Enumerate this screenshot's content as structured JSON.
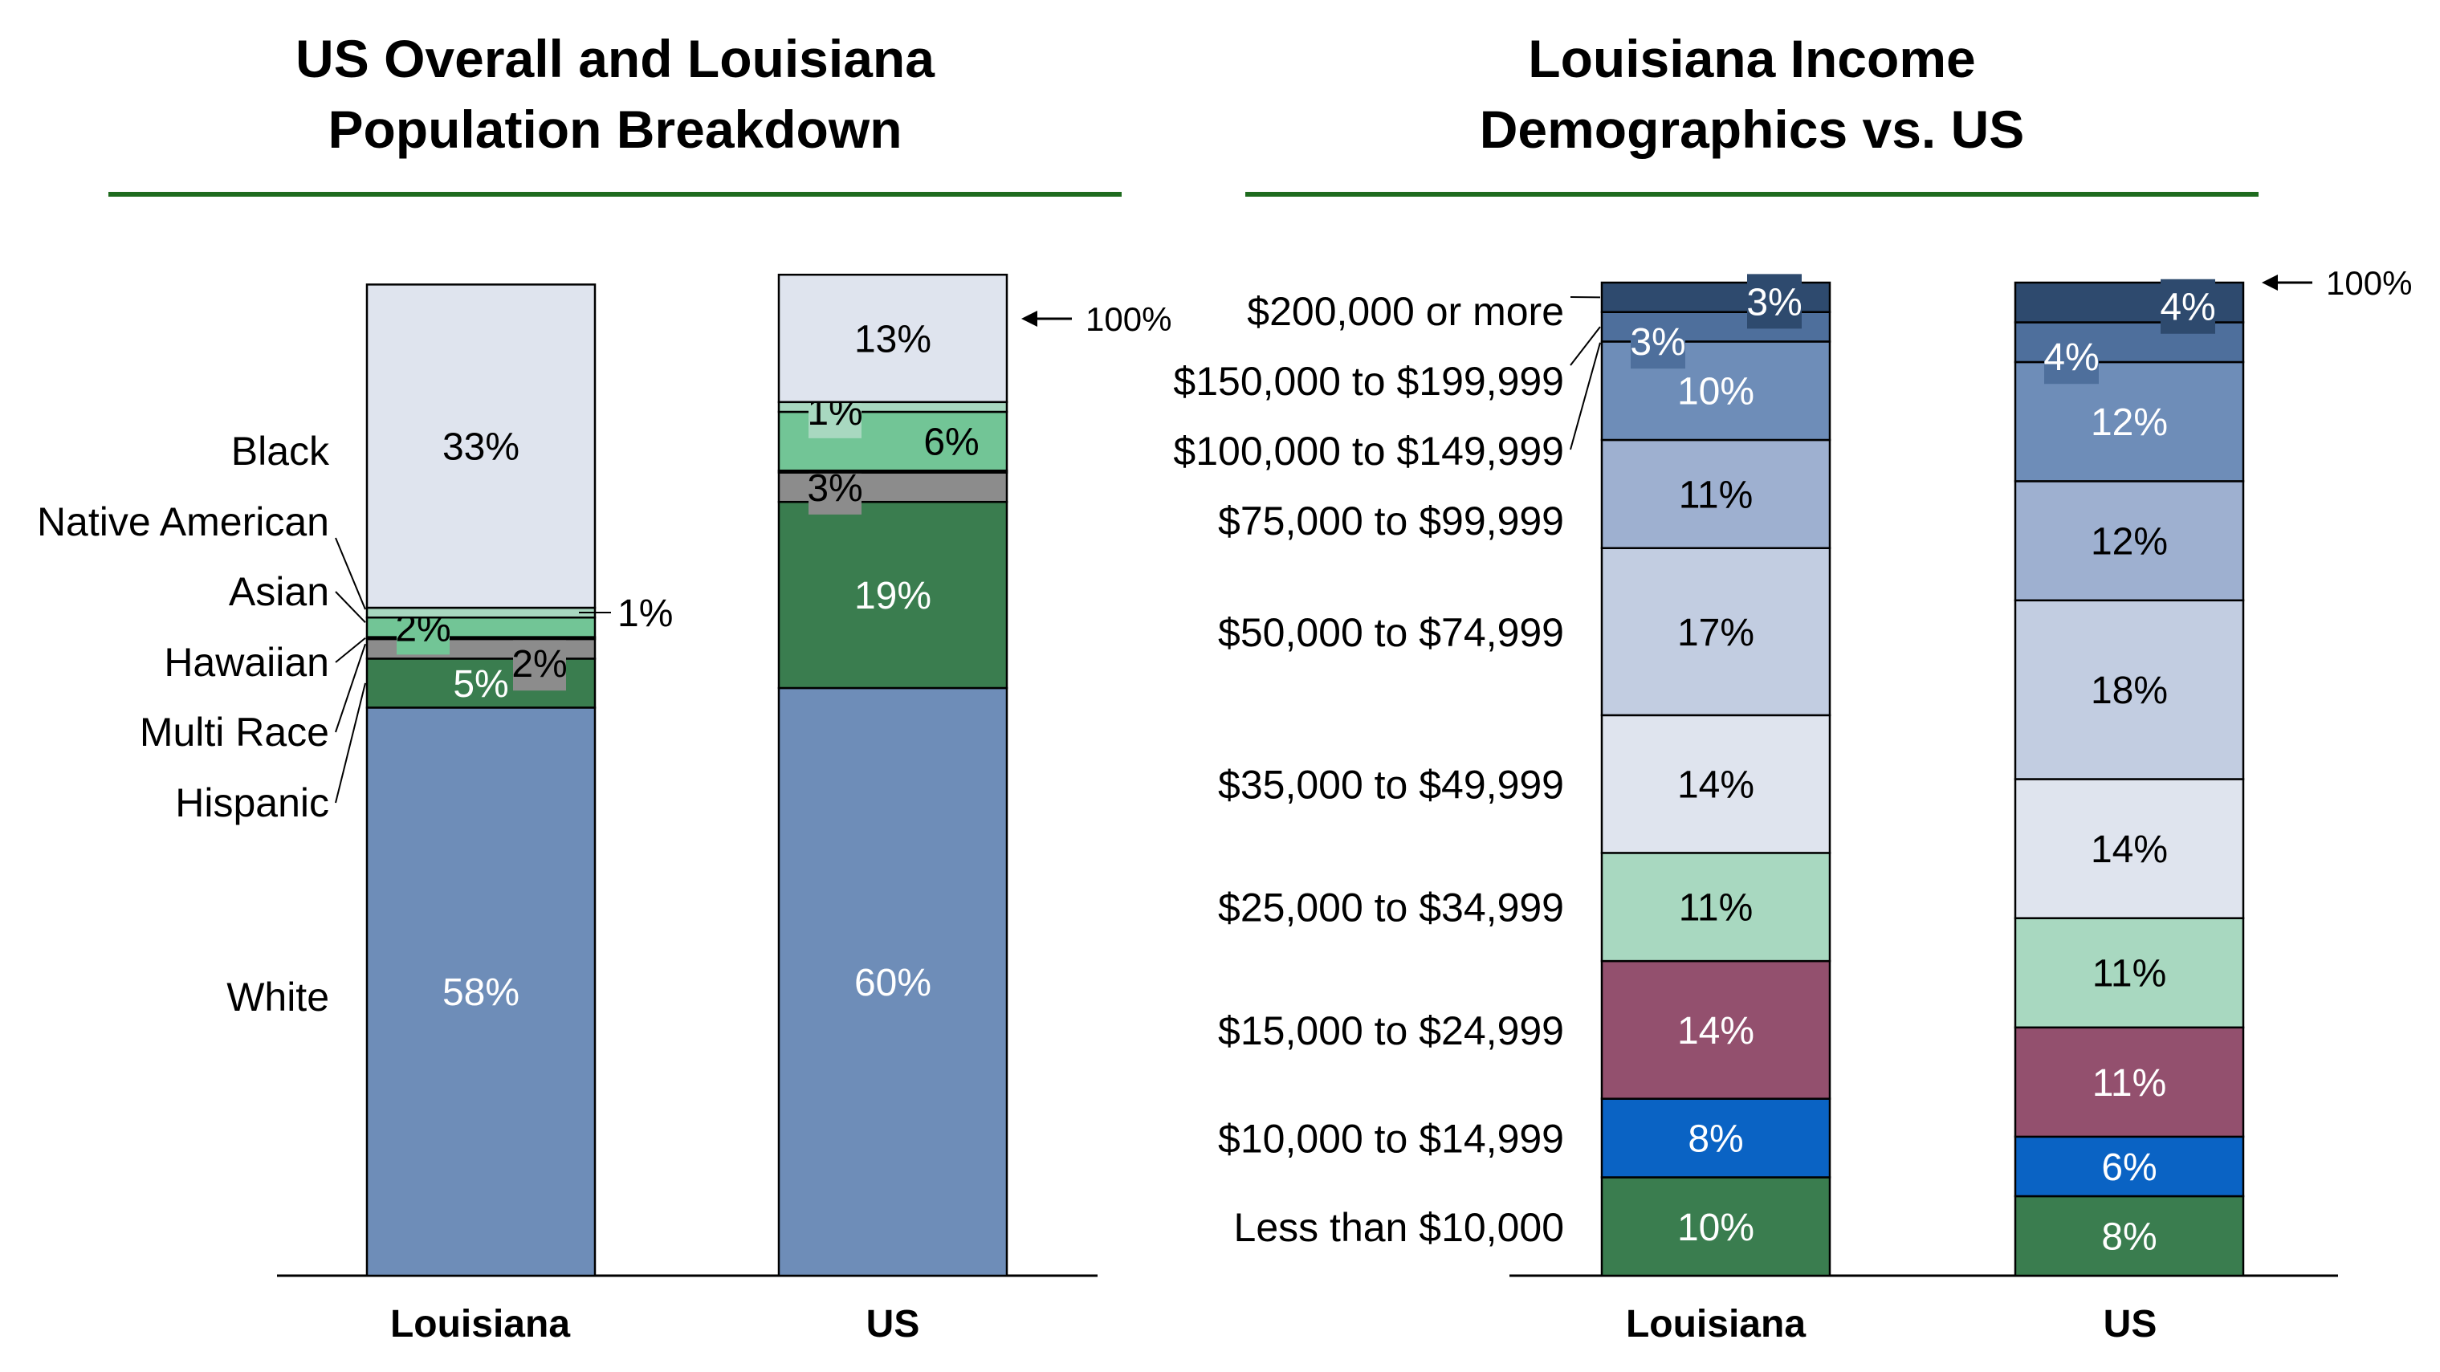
{
  "colors": {
    "accent_line": "#1e6b1e",
    "axis": "#000000"
  },
  "chart_data": [
    {
      "type": "bar",
      "stacked": true,
      "title": "US Overall and Louisiana\nPopulation Breakdown",
      "categories": [
        "Louisiana",
        "US"
      ],
      "ylim": [
        0,
        100
      ],
      "grid": false,
      "top_annotation": "100%",
      "series": [
        {
          "name": "White",
          "values": [
            58,
            60
          ],
          "labels": [
            "58%",
            "60%"
          ],
          "color": "#6e8db8",
          "label_color": "#ffffff"
        },
        {
          "name": "Hispanic",
          "values": [
            5,
            19
          ],
          "labels": [
            "5%",
            "19%"
          ],
          "color": "#3a7d4f",
          "label_color": "#ffffff"
        },
        {
          "name": "Multi Race",
          "values": [
            2,
            3
          ],
          "labels": [
            "2%",
            "3%"
          ],
          "color": "#8c8c8c",
          "label_color": "#000000"
        },
        {
          "name": "Hawaiian",
          "values": [
            0.2,
            0.2
          ],
          "labels": [
            "",
            ""
          ],
          "color": "#dfe4ee",
          "label_color": "#000000"
        },
        {
          "name": "Asian",
          "values": [
            2,
            6
          ],
          "labels": [
            "2%",
            "6%"
          ],
          "color": "#72c596",
          "label_color": "#000000"
        },
        {
          "name": "Native American",
          "values": [
            1,
            1
          ],
          "labels": [
            "1%",
            "1%"
          ],
          "color": "#a8d8c0",
          "label_color": "#000000"
        },
        {
          "name": "Black",
          "values": [
            33,
            13
          ],
          "labels": [
            "33%",
            "13%"
          ],
          "color": "#dfe4ee",
          "label_color": "#000000"
        }
      ]
    },
    {
      "type": "bar",
      "stacked": true,
      "title": "Louisiana Income\nDemographics vs. US",
      "categories": [
        "Louisiana",
        "US"
      ],
      "ylim": [
        0,
        100
      ],
      "grid": false,
      "top_annotation": "100%",
      "series": [
        {
          "name": "Less than $10,000",
          "values": [
            10,
            8
          ],
          "labels": [
            "10%",
            "8%"
          ],
          "color": "#3a7d4f",
          "label_color": "#ffffff"
        },
        {
          "name": "$10,000 to $14,999",
          "values": [
            8,
            6
          ],
          "labels": [
            "8%",
            "6%"
          ],
          "color": "#0a63c4",
          "label_color": "#ffffff"
        },
        {
          "name": "$15,000 to $24,999",
          "values": [
            14,
            11
          ],
          "labels": [
            "14%",
            "11%"
          ],
          "color": "#93506e",
          "label_color": "#ffffff"
        },
        {
          "name": "$25,000 to $34,999",
          "values": [
            11,
            11
          ],
          "labels": [
            "11%",
            "11%"
          ],
          "color": "#a8d8c0",
          "label_color": "#000000"
        },
        {
          "name": "$35,000 to $49,999",
          "values": [
            14,
            14
          ],
          "labels": [
            "14%",
            "14%"
          ],
          "color": "#dfe4ee",
          "label_color": "#000000"
        },
        {
          "name": "$50,000 to $74,999",
          "values": [
            17,
            18
          ],
          "labels": [
            "17%",
            "18%"
          ],
          "color": "#c2cde1",
          "label_color": "#000000"
        },
        {
          "name": "$75,000 to $99,999",
          "values": [
            11,
            12
          ],
          "labels": [
            "11%",
            "12%"
          ],
          "color": "#9eb0d0",
          "label_color": "#000000"
        },
        {
          "name": "$100,000 to $149,999",
          "values": [
            10,
            12
          ],
          "labels": [
            "10%",
            "12%"
          ],
          "color": "#6e8db8",
          "label_color": "#ffffff"
        },
        {
          "name": "$150,000 to $199,999",
          "values": [
            3,
            4
          ],
          "labels": [
            "3%",
            "4%"
          ],
          "color": "#4e6f9c",
          "label_color": "#ffffff"
        },
        {
          "name": "$200,000 or more",
          "values": [
            3,
            4
          ],
          "labels": [
            "3%",
            "4%"
          ],
          "color": "#2e4a6e",
          "label_color": "#ffffff"
        }
      ]
    }
  ]
}
